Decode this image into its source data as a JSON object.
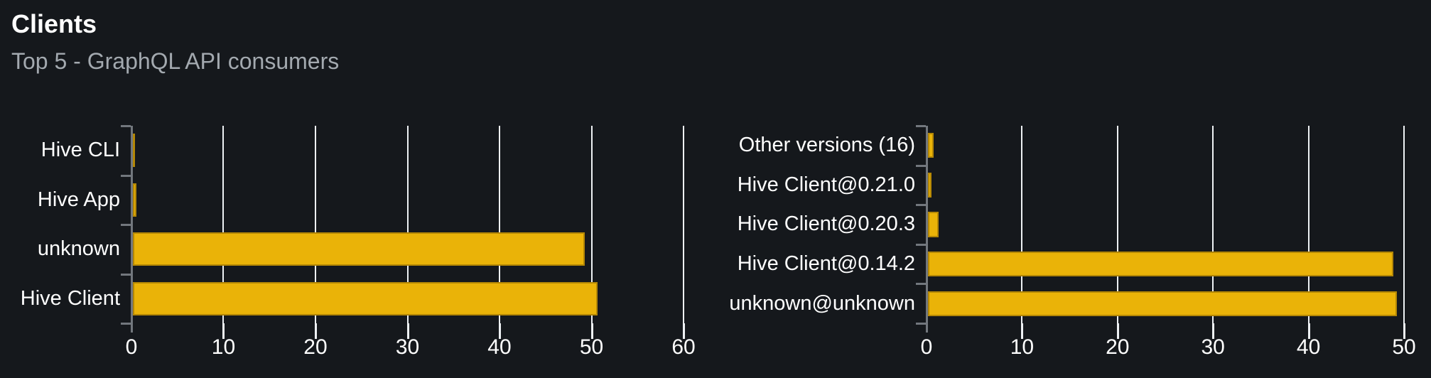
{
  "header": {
    "title": "Clients",
    "subtitle": "Top 5 - GraphQL API consumers"
  },
  "colors": {
    "background": "#15181c",
    "bar": "#eab308",
    "bar_border": "#8d6c0e",
    "gridline": "#eef1f4",
    "axis": "#72777d",
    "text": "#ffffff",
    "subtitle_text": "#a3a9af"
  },
  "chart_data": [
    {
      "type": "bar",
      "orientation": "horizontal",
      "title": "",
      "xlabel": "",
      "ylabel": "",
      "categories": [
        "Hive CLI",
        "Hive App",
        "unknown",
        "Hive Client"
      ],
      "values": [
        0.2,
        0.4,
        49.1,
        50.5
      ],
      "xlim": [
        0,
        60
      ],
      "ticks": [
        0,
        10,
        20,
        30,
        40,
        50,
        60
      ],
      "grid": true,
      "legend": false,
      "bar_height_frac": 0.68
    },
    {
      "type": "bar",
      "orientation": "horizontal",
      "title": "",
      "xlabel": "",
      "ylabel": "",
      "categories": [
        "Other versions (16)",
        "Hive Client@0.21.0",
        "Hive Client@0.20.3",
        "Hive Client@0.14.2",
        "unknown@unknown"
      ],
      "values": [
        0.6,
        0.4,
        1.1,
        48.7,
        49.1
      ],
      "xlim": [
        0,
        50
      ],
      "ticks": [
        0,
        10,
        20,
        30,
        40,
        50
      ],
      "grid": true,
      "legend": false,
      "bar_height_frac": 0.63
    }
  ]
}
